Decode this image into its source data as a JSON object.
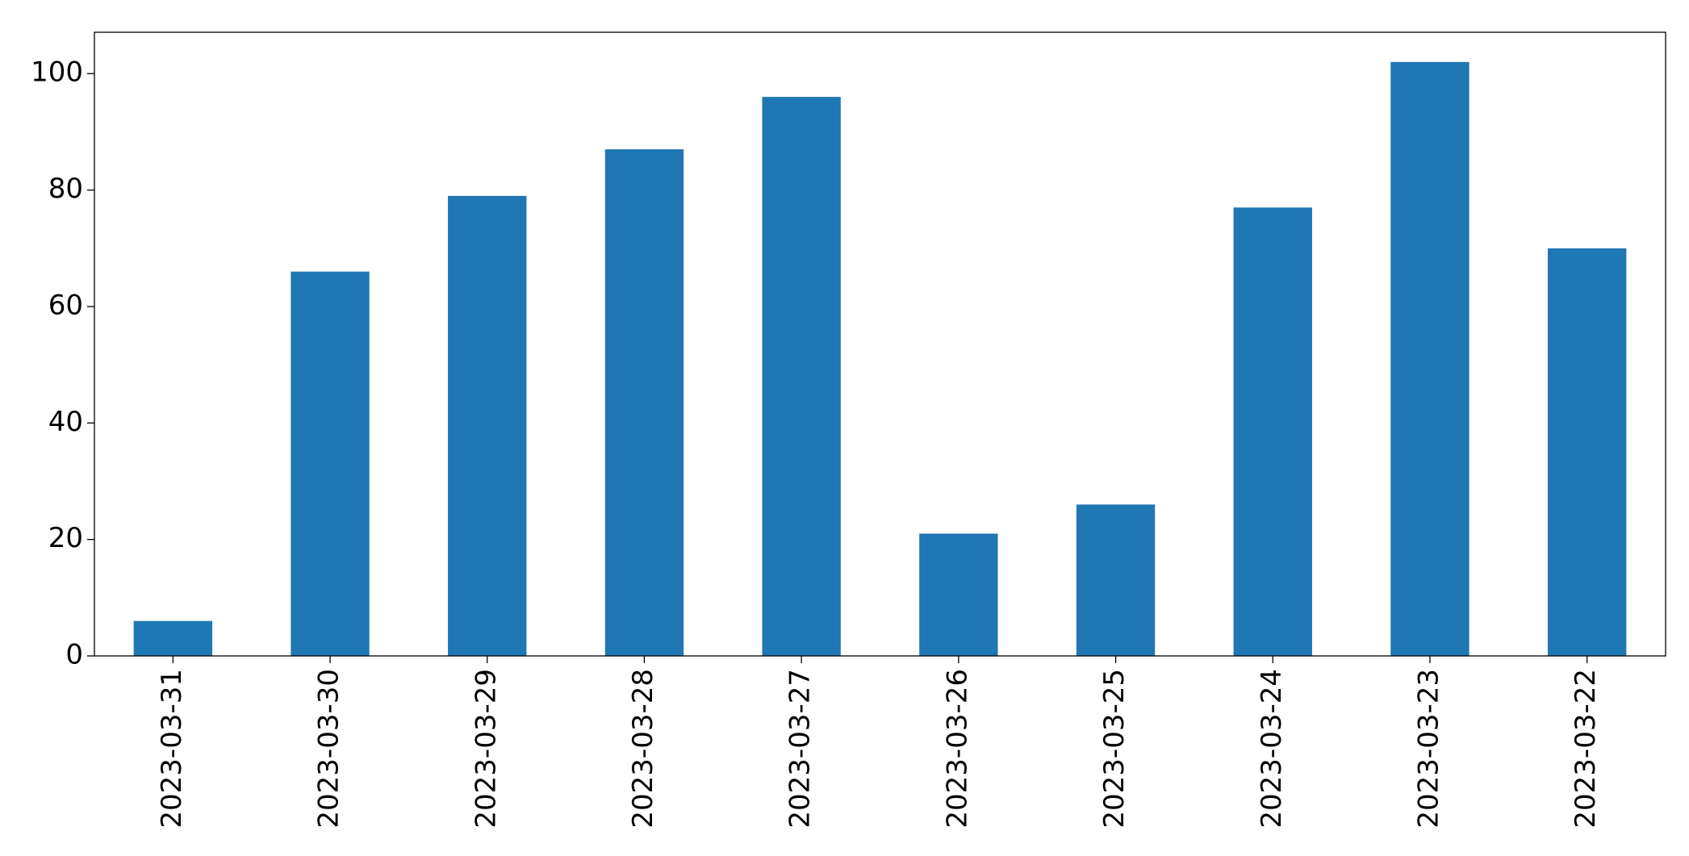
{
  "chart_data": {
    "type": "bar",
    "categories": [
      "2023-03-31",
      "2023-03-30",
      "2023-03-29",
      "2023-03-28",
      "2023-03-27",
      "2023-03-26",
      "2023-03-25",
      "2023-03-24",
      "2023-03-23",
      "2023-03-22"
    ],
    "values": [
      6,
      66,
      79,
      87,
      96,
      21,
      26,
      77,
      102,
      70
    ],
    "color": "#1f77b4",
    "ylim": [
      0,
      107.1
    ],
    "yticks": [
      0,
      20,
      40,
      60,
      80,
      100
    ],
    "grid": false
  }
}
